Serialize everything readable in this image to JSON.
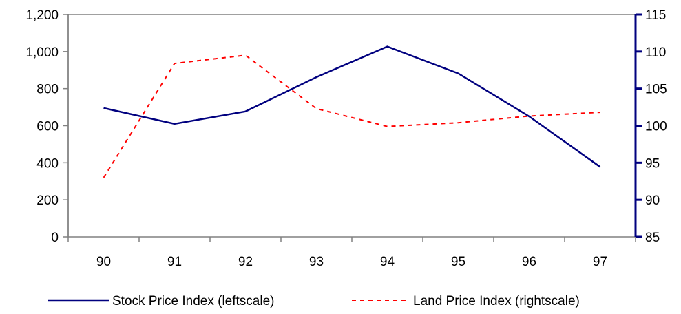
{
  "chart_data": {
    "type": "line",
    "categories": [
      "90",
      "91",
      "92",
      "93",
      "94",
      "95",
      "96",
      "97"
    ],
    "series": [
      {
        "name": "Stock Price Index (leftscale)",
        "axis": "left",
        "color": "#00007f",
        "style": "solid",
        "values": [
          695,
          610,
          677,
          862,
          1027,
          882,
          650,
          378
        ]
      },
      {
        "name": "Land Price Index (rightscale)",
        "axis": "right",
        "color": "#ff0000",
        "style": "dashed",
        "values": [
          93.0,
          108.4,
          109.5,
          102.3,
          99.9,
          100.4,
          101.3,
          101.8
        ]
      }
    ],
    "left_axis": {
      "min": 0,
      "max": 1200,
      "ticks": [
        "0",
        "200",
        "400",
        "600",
        "800",
        "1,000",
        "1,200"
      ],
      "tick_values": [
        0,
        200,
        400,
        600,
        800,
        1000,
        1200
      ]
    },
    "right_axis": {
      "min": 85,
      "max": 115,
      "ticks": [
        "85",
        "90",
        "95",
        "100",
        "105",
        "110",
        "115"
      ],
      "tick_values": [
        85,
        90,
        95,
        100,
        105,
        110,
        115
      ],
      "color": "#00007f"
    },
    "title": "",
    "xlabel": "",
    "ylabel": "",
    "grid": false,
    "legend_position": "bottom"
  }
}
